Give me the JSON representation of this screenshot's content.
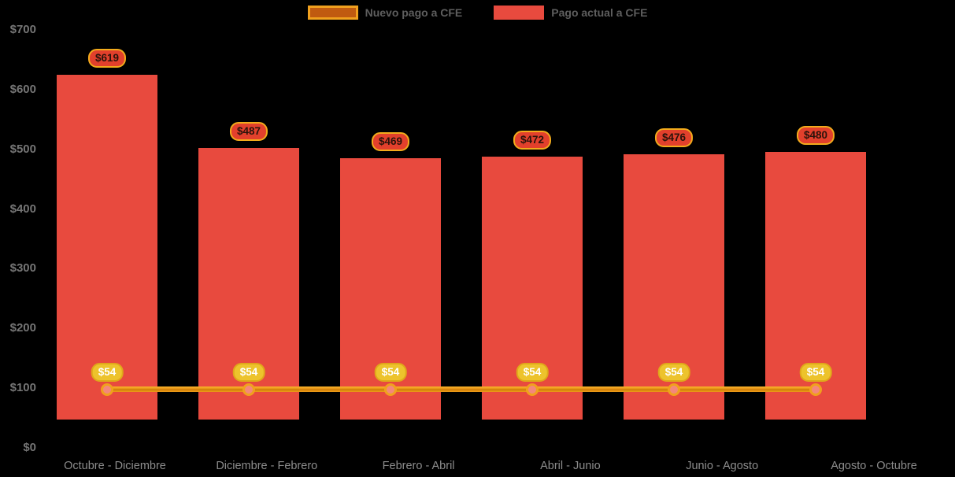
{
  "chart_data": {
    "type": "bar",
    "title": "",
    "categories": [
      "Octubre - Diciembre",
      "Diciembre - Febrero",
      "Febrero - Abril",
      "Abril - Junio",
      "Junio - Agosto",
      "Agosto - Octubre"
    ],
    "series": [
      {
        "name": "Nuevo pago a CFE",
        "type": "line",
        "values": [
          54,
          54,
          54,
          54,
          54,
          54
        ],
        "labels": [
          "$54",
          "$54",
          "$54",
          "$54",
          "$54",
          "$54"
        ],
        "color": "#f0a01e"
      },
      {
        "name": "Pago actual a CFE",
        "type": "bar",
        "values": [
          619,
          487,
          469,
          472,
          476,
          480
        ],
        "labels": [
          "$619",
          "$487",
          "$469",
          "$472",
          "$476",
          "$480"
        ],
        "color": "#e84a3e"
      }
    ],
    "y_ticks": [
      {
        "label": "$0",
        "value": 0
      },
      {
        "label": "$100",
        "value": 100
      },
      {
        "label": "$200",
        "value": 200
      },
      {
        "label": "$300",
        "value": 300
      },
      {
        "label": "$400",
        "value": 400
      },
      {
        "label": "$500",
        "value": 500
      },
      {
        "label": "$600",
        "value": 600
      },
      {
        "label": "$700",
        "value": 700
      }
    ],
    "ylim": [
      0,
      700
    ],
    "xlabel": "",
    "ylabel": "",
    "grid": false,
    "legend_position": "top",
    "colors": {
      "background": "#000000",
      "bar": "#e84a3e",
      "line": "#f0a01e",
      "line_swatch_fill": "#c05a10",
      "marker_fill": "#f4877c",
      "bar_badge_bg": "#e2402c",
      "bar_badge_border": "#f2ab1c",
      "bar_badge_text": "#2a130b",
      "line_badge_bg": "#edc32c",
      "line_badge_text": "#ffffff",
      "y_axis_text": "#757575",
      "x_axis_text": "#8c8c8c",
      "legend_text": "#5e5e5e"
    }
  }
}
